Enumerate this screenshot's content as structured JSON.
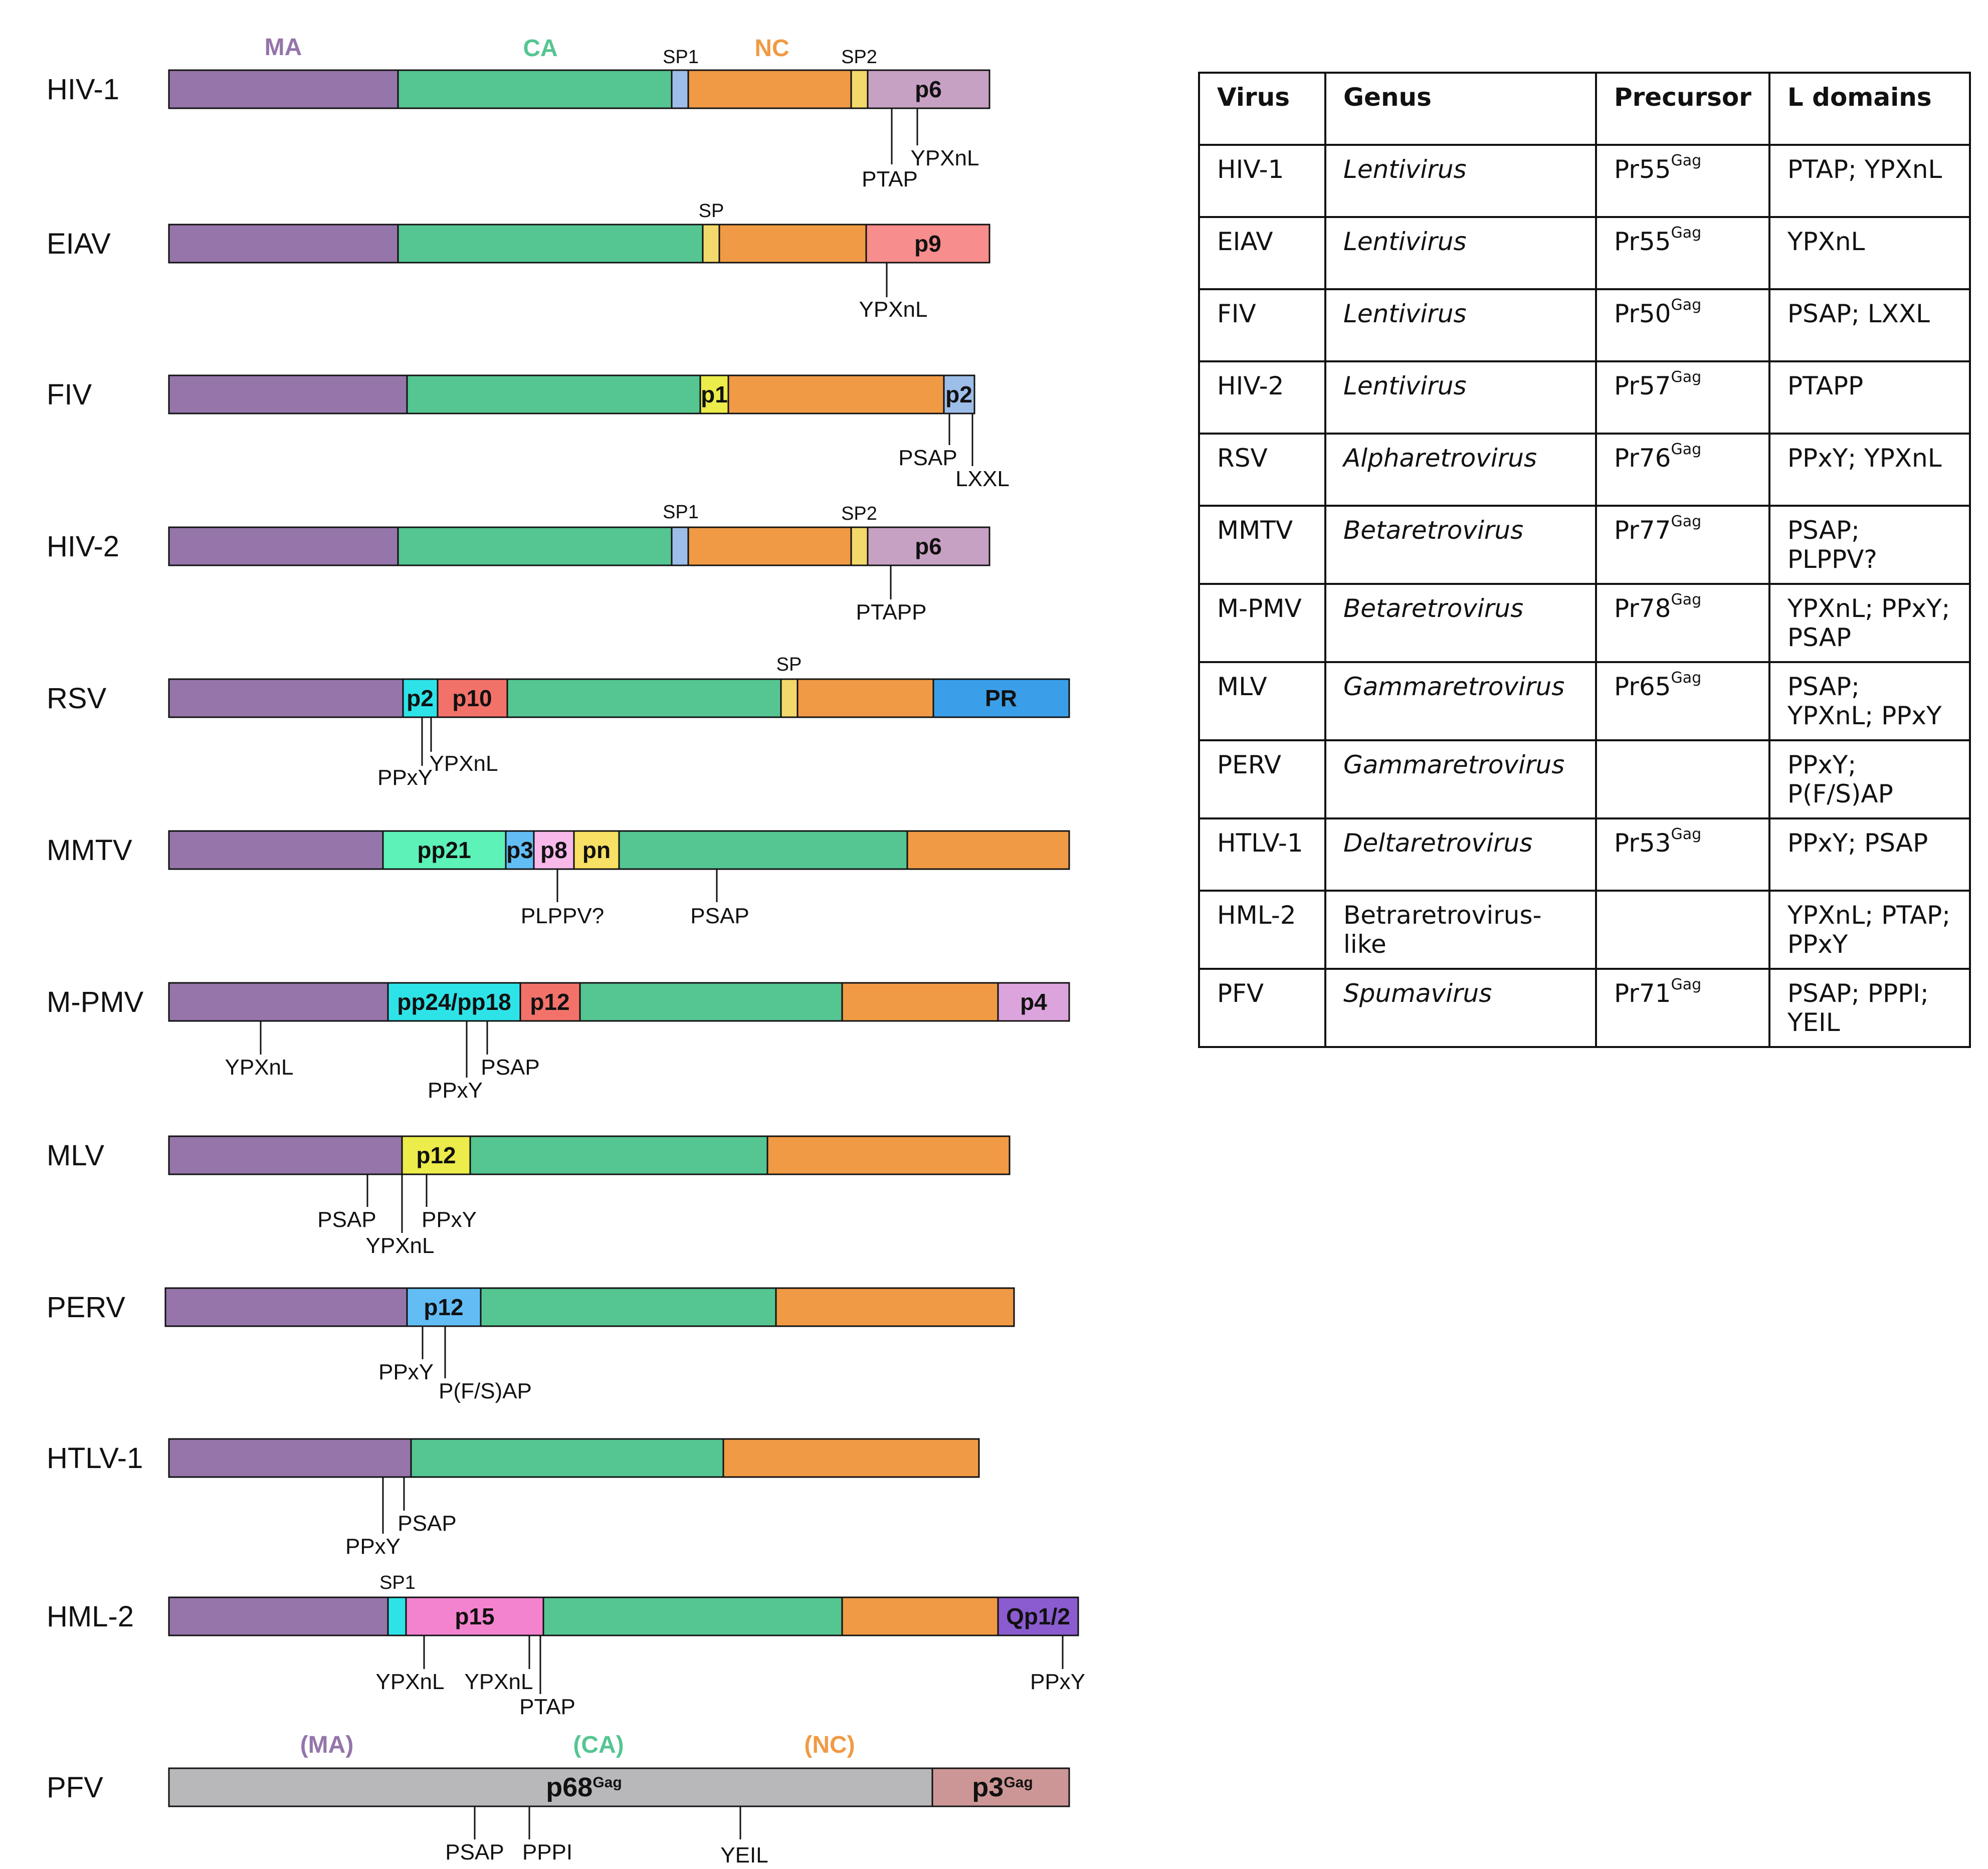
{
  "domain_labels": {
    "MA": "MA",
    "CA": "CA",
    "NC": "NC",
    "MA_paren": "(MA)",
    "CA_paren": "(CA)",
    "NC_paren": "(NC)",
    "SP1": "SP1",
    "SP2": "SP2",
    "SP": "SP"
  },
  "colors": {
    "MA": "#9575aa",
    "CA": "#55c592",
    "NC": "#f09a45",
    "spacer_blue": "#9dbee8",
    "spacer_yellow": "#f3d86b",
    "p6": "#c7a1c4",
    "p9": "#f78d8c",
    "yellow": "#ecec4a",
    "cyan": "#2ee3e8",
    "red": "#f2726a",
    "PR": "#3a9fe8",
    "mint": "#5df2b8",
    "p8": "#f8b9ea",
    "pn": "#f7e063",
    "p4": "#dca4dc",
    "p12_blue": "#63bdf5",
    "p15": "#f383ce",
    "Qp": "#8b5ccf",
    "grey": "#b8b7ba",
    "p3gag": "#cd9696"
  },
  "viruses": [
    {
      "name": "HIV-1",
      "segments": [
        "",
        "",
        "",
        "",
        "",
        "p6"
      ],
      "motifs": [
        "PTAP",
        "YPXnL"
      ]
    },
    {
      "name": "EIAV",
      "segments": [
        "",
        "",
        "",
        "",
        "p9"
      ],
      "motifs": [
        "YPXnL"
      ]
    },
    {
      "name": "FIV",
      "segments": [
        "",
        "",
        "p1",
        "",
        "p2"
      ],
      "motifs": [
        "PSAP",
        "LXXL"
      ]
    },
    {
      "name": "HIV-2",
      "segments": [
        "",
        "",
        "",
        "",
        "",
        "p6"
      ],
      "motifs": [
        "PTAPP"
      ]
    },
    {
      "name": "RSV",
      "segments": [
        "",
        "p2",
        "p10",
        "",
        "",
        "",
        "PR"
      ],
      "motifs": [
        "PPxY",
        "YPXnL"
      ]
    },
    {
      "name": "MMTV",
      "segments": [
        "",
        "pp21",
        "p3",
        "p8",
        "pn",
        "",
        ""
      ],
      "motifs": [
        "PLPPV?",
        "PSAP"
      ]
    },
    {
      "name": "M-PMV",
      "segments": [
        "",
        "pp24/pp18",
        "p12",
        "",
        "",
        "p4"
      ],
      "motifs": [
        "YPXnL",
        "PPxY",
        "PSAP"
      ]
    },
    {
      "name": "MLV",
      "segments": [
        "",
        "p12",
        "",
        ""
      ],
      "motifs": [
        "PSAP",
        "YPXnL",
        "PPxY"
      ]
    },
    {
      "name": "PERV",
      "segments": [
        "",
        "p12",
        "",
        ""
      ],
      "motifs": [
        "PPxY",
        "P(F/S)AP"
      ]
    },
    {
      "name": "HTLV-1",
      "segments": [
        "",
        "",
        ""
      ],
      "motifs": [
        "PPxY",
        "PSAP"
      ]
    },
    {
      "name": "HML-2",
      "segments": [
        "",
        "",
        "p15",
        "",
        "",
        "Qp1/2"
      ],
      "motifs": [
        "YPXnL",
        "YPXnL",
        "PTAP",
        "PPxY"
      ]
    },
    {
      "name": "PFV",
      "segments": [
        "p68",
        "p3"
      ],
      "segment_sups": [
        "Gag",
        "Gag"
      ],
      "motifs": [
        "PSAP",
        "PPPI",
        "YEIL"
      ]
    }
  ],
  "table": {
    "headers": [
      "Virus",
      "Genus",
      "Precursor",
      "L domains"
    ],
    "rows": [
      {
        "virus": "HIV-1",
        "genus": "Lentivirus",
        "precursor": "Pr55",
        "sup": "Gag",
        "ldomains": "PTAP; YPXnL"
      },
      {
        "virus": "EIAV",
        "genus": "Lentivirus",
        "precursor": "Pr55",
        "sup": "Gag",
        "ldomains": "YPXnL"
      },
      {
        "virus": "FIV",
        "genus": "Lentivirus",
        "precursor": "Pr50",
        "sup": "Gag",
        "ldomains": "PSAP; LXXL"
      },
      {
        "virus": "HIV-2",
        "genus": "Lentivirus",
        "precursor": "Pr57",
        "sup": "Gag",
        "ldomains": "PTAPP"
      },
      {
        "virus": "RSV",
        "genus": "Alpharetrovirus",
        "precursor": "Pr76",
        "sup": "Gag",
        "ldomains": "PPxY; YPXnL"
      },
      {
        "virus": "MMTV",
        "genus": "Betaretrovirus",
        "precursor": "Pr77",
        "sup": "Gag",
        "ldomains": "PSAP; PLPPV?"
      },
      {
        "virus": "M-PMV",
        "genus": "Betaretrovirus",
        "precursor": "Pr78",
        "sup": "Gag",
        "ldomains": "YPXnL; PPxY; PSAP"
      },
      {
        "virus": "MLV",
        "genus": "Gammaretrovirus",
        "precursor": "Pr65",
        "sup": "Gag",
        "ldomains": "PSAP; YPXnL; PPxY"
      },
      {
        "virus": "PERV",
        "genus": "Gammaretrovirus",
        "precursor": "",
        "sup": "",
        "ldomains": "PPxY; P(F/S)AP"
      },
      {
        "virus": "HTLV-1",
        "genus": "Deltaretrovirus",
        "precursor": "Pr53",
        "sup": "Gag",
        "ldomains": "PPxY; PSAP"
      },
      {
        "virus": "HML-2",
        "genus": "Betraretrovirus-like",
        "precursor": "",
        "sup": "",
        "ldomains": "YPXnL; PTAP; PPxY"
      },
      {
        "virus": "PFV",
        "genus": "Spumavirus",
        "precursor": "Pr71",
        "sup": "Gag",
        "ldomains": "PSAP; PPPI; YEIL"
      }
    ]
  }
}
